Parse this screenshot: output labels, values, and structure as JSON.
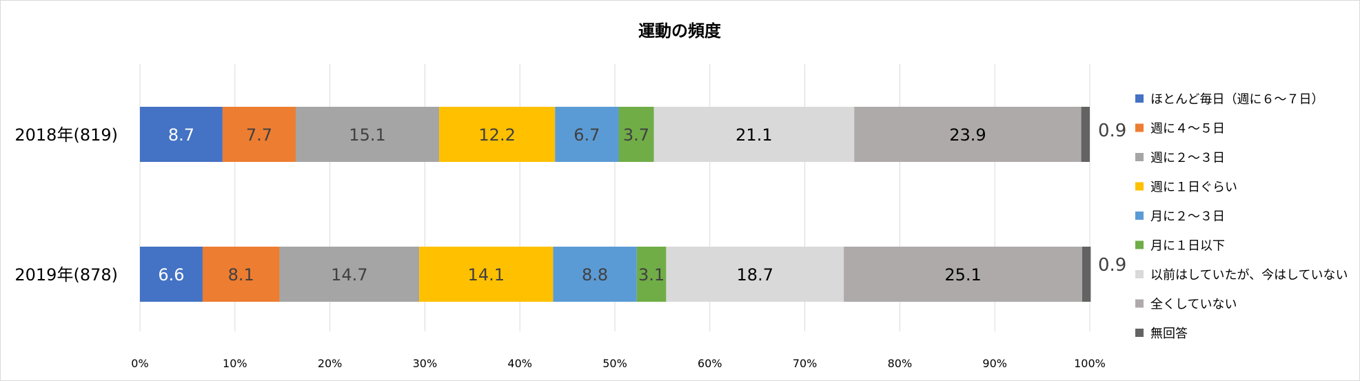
{
  "chart_data": {
    "type": "bar",
    "orientation": "horizontal",
    "stacked": "100%",
    "title": "運動の頻度",
    "categories": [
      "2018年(819)",
      "2019年(878)"
    ],
    "xlim": [
      0,
      100
    ],
    "x_ticks": [
      "0%",
      "10%",
      "20%",
      "30%",
      "40%",
      "50%",
      "60%",
      "70%",
      "80%",
      "90%",
      "100%"
    ],
    "grid": true,
    "legend_position": "right",
    "series": [
      {
        "name": "ほとんど毎日（週に６～７日）",
        "color": "#4472c4",
        "values": [
          8.7,
          6.6
        ],
        "label_color": "#ffffff"
      },
      {
        "name": "週に４～５日",
        "color": "#ed7d31",
        "values": [
          7.7,
          8.1
        ],
        "label_color": "#404040"
      },
      {
        "name": "週に２～３日",
        "color": "#a5a5a5",
        "values": [
          15.1,
          14.7
        ],
        "label_color": "#404040"
      },
      {
        "name": "週に１日ぐらい",
        "color": "#ffc000",
        "values": [
          12.2,
          14.1
        ],
        "label_color": "#404040"
      },
      {
        "name": "月に２～３日",
        "color": "#5b9bd5",
        "values": [
          6.7,
          8.8
        ],
        "label_color": "#404040"
      },
      {
        "name": "月に１日以下",
        "color": "#70ad47",
        "values": [
          3.7,
          3.1
        ],
        "label_color": "#404040"
      },
      {
        "name": "以前はしていたが、今はしていない",
        "color": "#d9d9d9",
        "values": [
          21.1,
          18.7
        ],
        "label_color": "#000000"
      },
      {
        "name": "全くしていない",
        "color": "#aeaaaa",
        "values": [
          23.9,
          25.1
        ],
        "label_color": "#000000"
      },
      {
        "name": "無回答",
        "color": "#636363",
        "values": [
          0.9,
          0.9
        ],
        "label_color": "#404040",
        "label_outside": true
      }
    ]
  }
}
